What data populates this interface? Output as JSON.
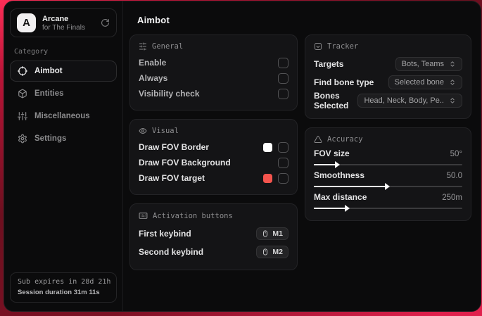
{
  "brand": {
    "initial": "A",
    "name": "Arcane",
    "subtitle": "for The Finals"
  },
  "sidebar": {
    "category_label": "Category",
    "items": [
      {
        "label": "Aimbot",
        "active": true
      },
      {
        "label": "Entities",
        "active": false
      },
      {
        "label": "Miscellaneous",
        "active": false
      },
      {
        "label": "Settings",
        "active": false
      }
    ],
    "footer": {
      "line1": "Sub expires in 28d 21h",
      "line2": "Session duration 31m 11s"
    }
  },
  "main": {
    "title": "Aimbot",
    "cards": {
      "general": {
        "title": "General",
        "rows": [
          {
            "label": "Enable",
            "checked": false
          },
          {
            "label": "Always",
            "checked": false
          },
          {
            "label": "Visibility check",
            "checked": false
          }
        ]
      },
      "visual": {
        "title": "Visual",
        "rows": [
          {
            "label": "Draw FOV Border",
            "swatch": "#ffffff",
            "checked": false
          },
          {
            "label": "Draw FOV Background",
            "checked": false
          },
          {
            "label": "Draw FOV target",
            "swatch": "#f4544d",
            "checked": false
          }
        ]
      },
      "activation": {
        "title": "Activation buttons",
        "rows": [
          {
            "label": "First keybind",
            "key": "M1"
          },
          {
            "label": "Second keybind",
            "key": "M2"
          }
        ]
      },
      "tracker": {
        "title": "Tracker",
        "rows": [
          {
            "label": "Targets",
            "value": "Bots, Teams"
          },
          {
            "label": "Find bone type",
            "value": "Selected bone"
          },
          {
            "label": "Bones Selected",
            "value": "Head, Neck, Body, Pe.."
          }
        ]
      },
      "accuracy": {
        "title": "Accuracy",
        "sliders": [
          {
            "label": "FOV size",
            "value": "50°",
            "percent": 14
          },
          {
            "label": "Smoothness",
            "value": "50.0",
            "percent": 48
          },
          {
            "label": "Max distance",
            "value": "250m",
            "percent": 21
          }
        ]
      }
    }
  },
  "colors": {
    "accent": "#e11d48",
    "swatch_white": "#ffffff",
    "swatch_red": "#f4544d"
  }
}
